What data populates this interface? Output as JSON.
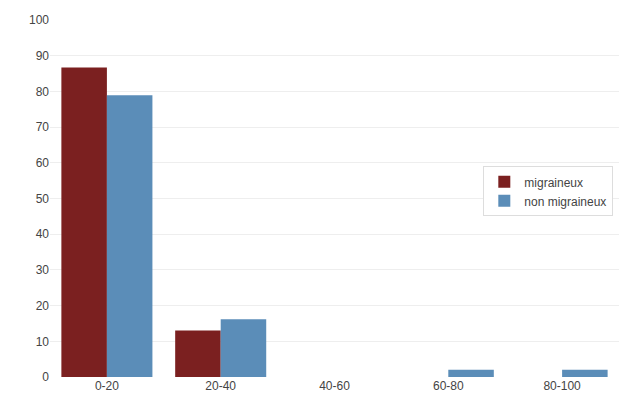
{
  "chart_data": {
    "type": "bar",
    "categories": [
      "0-20",
      "20-40",
      "40-60",
      "60-80",
      "80-100"
    ],
    "series": [
      {
        "name": "migraineux",
        "color": "#7B2020",
        "values": [
          86.7,
          13.0,
          0,
          0,
          0
        ]
      },
      {
        "name": "non migraineux",
        "color": "#5B8DB8",
        "values": [
          78.9,
          16.2,
          0,
          2.0,
          2.0
        ]
      }
    ],
    "ylim": [
      0,
      100
    ],
    "yticks": [
      0,
      10,
      20,
      30,
      40,
      50,
      60,
      70,
      80,
      90,
      100
    ],
    "grid": true,
    "legend": "right"
  }
}
